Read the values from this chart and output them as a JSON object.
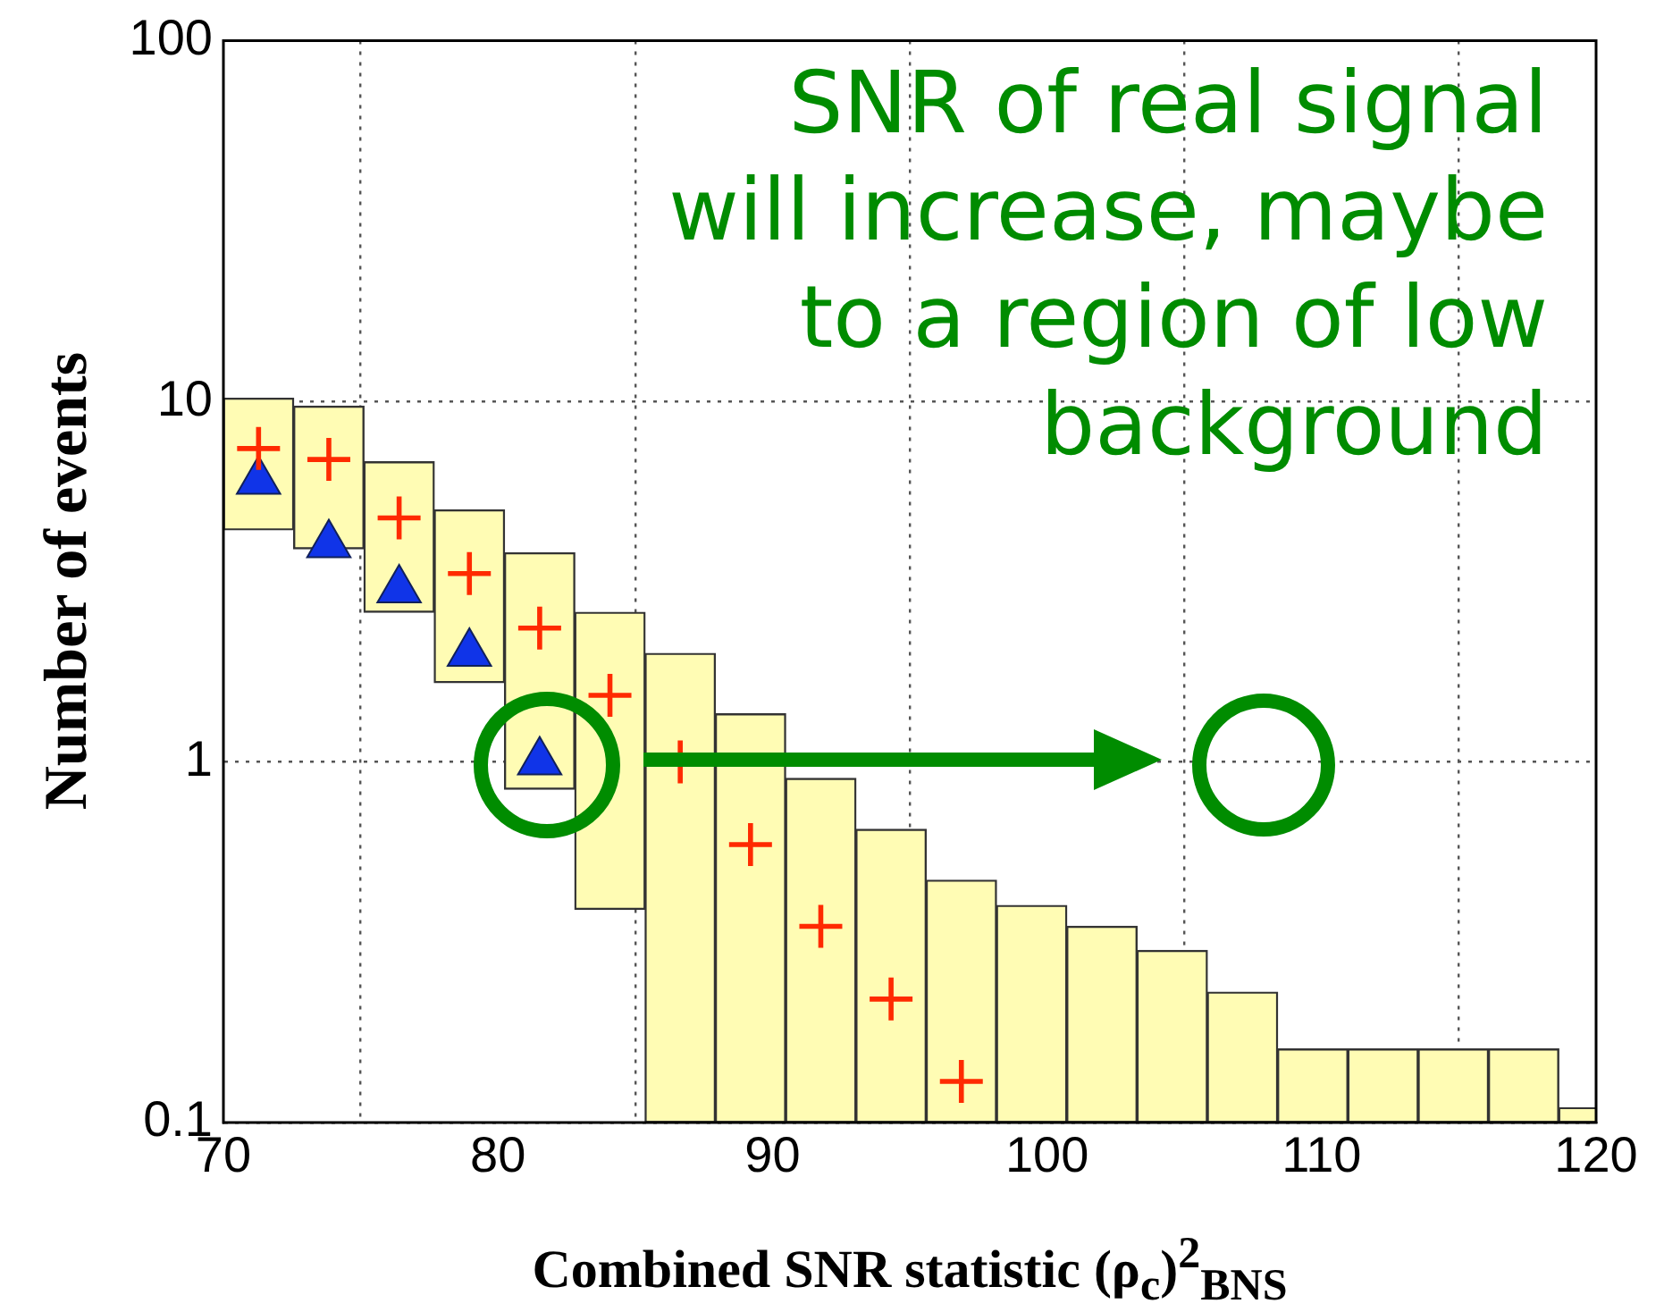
{
  "chart_data": {
    "type": "bar",
    "xlabel": "Combined SNR statistic (ρ$_{c}$)$^{2}$$_{BNS}$",
    "ylabel": "Number of events",
    "annotations": [
      "SNR of real signal\nwill increase, maybe\nto a region of low\nbackground"
    ],
    "x": [
      71.28,
      73.84,
      76.4,
      78.96,
      81.52,
      84.08,
      86.64,
      89.2,
      91.76,
      94.32,
      96.88,
      99.44,
      102,
      104.56,
      107.12,
      109.68,
      112.24,
      114.8,
      117.36,
      119.92
    ],
    "series": [
      {
        "color": "#fffcb4",
        "base": [
          4.4,
          3.9,
          2.6,
          1.66,
          0.84,
          0.39,
          0.1,
          0.1,
          0.1,
          0.1,
          0.1,
          0.1,
          0.1,
          0.1,
          0.1,
          0.1,
          0.1,
          0.1,
          0.1,
          0.1
        ],
        "values": [
          5.8,
          5.8,
          4.2,
          3.34,
          2.96,
          2.21,
          1.9,
          1.26,
          0.8,
          0.55,
          0.37,
          0.3,
          0.25,
          0.2,
          0.13,
          0.06,
          0.06,
          0.06,
          0.06,
          0.01
        ]
      },
      {
        "type": "scatter",
        "marker": "cross",
        "color": "#ff2a00",
        "x": [
          71.28,
          73.84,
          76.4,
          78.96,
          81.52,
          84.08,
          86.64,
          89.2,
          91.76,
          94.32,
          96.88
        ],
        "values": [
          7.4,
          6.9,
          4.75,
          3.33,
          2.35,
          1.53,
          1.0,
          0.59,
          0.35,
          0.22,
          0.13
        ]
      },
      {
        "type": "scatter",
        "marker": "triangle",
        "color": "#1034e8",
        "x": [
          71.28,
          73.84,
          76.4,
          78.96,
          81.52
        ],
        "values": [
          6,
          4,
          3,
          2,
          1
        ]
      }
    ],
    "xlim": [
      70,
      120
    ],
    "xticks": [
      70,
      80,
      90,
      100,
      110,
      120
    ],
    "ylim": [
      0.1,
      100
    ],
    "yticks": [
      0.1,
      1,
      10,
      100
    ],
    "log": true,
    "grid": true
  }
}
